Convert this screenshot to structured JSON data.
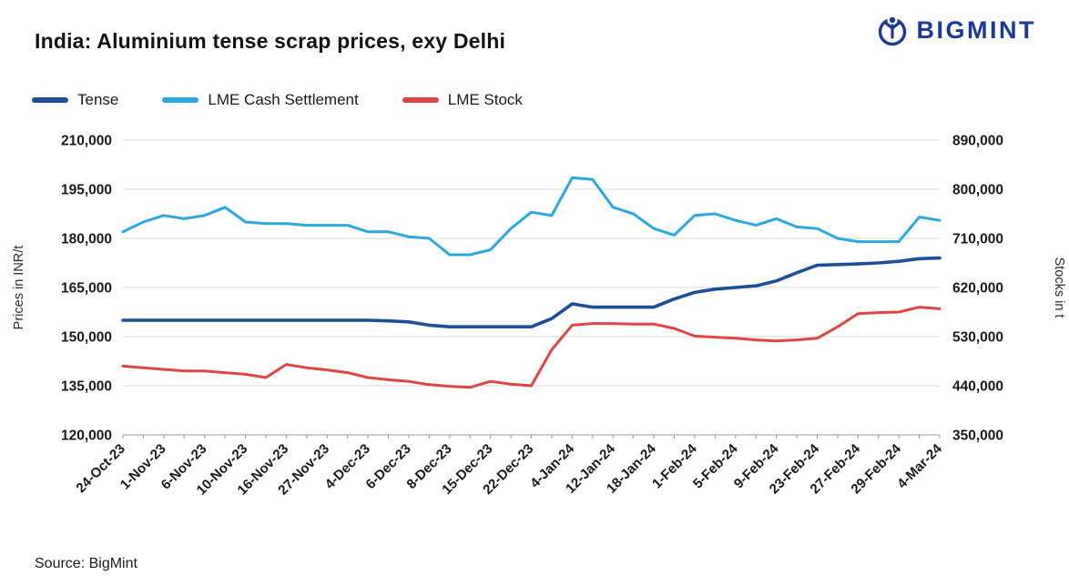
{
  "header": {
    "title": "India: Aluminium tense scrap prices, exy Delhi",
    "brand": "BIGMINT",
    "brand_color": "#1c3998"
  },
  "legend": [
    {
      "label": "Tense",
      "color": "#1b4f9c"
    },
    {
      "label": "LME Cash Settlement",
      "color": "#2aa9e0"
    },
    {
      "label": "LME Stock",
      "color": "#e24444"
    }
  ],
  "source": "Source: BigMint",
  "chart_data": {
    "type": "line",
    "title": "India: Aluminium tense scrap prices, exy Delhi",
    "grid": true,
    "legend_position": "top",
    "x_tick_labels": [
      "24-Oct-23",
      "1-Nov-23",
      "6-Nov-23",
      "10-Nov-23",
      "16-Nov-23",
      "27-Nov-23",
      "4-Dec-23",
      "6-Dec-23",
      "8-Dec-23",
      "15-Dec-23",
      "22-Dec-23",
      "4-Jan-24",
      "12-Jan-24",
      "18-Jan-24",
      "1-Feb-24",
      "5-Feb-24",
      "9-Feb-24",
      "23-Feb-24",
      "27-Feb-24",
      "29-Feb-24",
      "4-Mar-24"
    ],
    "left_axis": {
      "label": "Prices in INR/t",
      "min": 120000,
      "max": 210000,
      "ticks": [
        120000,
        135000,
        150000,
        165000,
        180000,
        195000,
        210000
      ]
    },
    "right_axis": {
      "label": "Stocks in t",
      "min": 350000,
      "max": 890000,
      "ticks": [
        350000,
        440000,
        530000,
        620000,
        710000,
        800000,
        890000
      ]
    },
    "series": [
      {
        "name": "Tense",
        "axis": "left",
        "color": "#1b4f9c",
        "width": 3.6,
        "values": [
          155000,
          155000,
          155000,
          155000,
          155000,
          155000,
          155000,
          155000,
          155000,
          155000,
          155000,
          155000,
          155000,
          154800,
          154500,
          153500,
          153000,
          153000,
          153000,
          153000,
          153000,
          155500,
          160000,
          159000,
          159000,
          159000,
          159000,
          161500,
          163500,
          164500,
          165000,
          165500,
          167000,
          169500,
          171800,
          172000,
          172200,
          172500,
          173000,
          173800,
          174000
        ]
      },
      {
        "name": "LME Cash Settlement",
        "axis": "left",
        "color": "#2aa9e0",
        "width": 3,
        "values": [
          182000,
          185000,
          187000,
          186000,
          187000,
          189500,
          185000,
          184500,
          184500,
          184000,
          184000,
          184000,
          182000,
          182000,
          180500,
          180000,
          175000,
          175000,
          176500,
          183000,
          188000,
          187000,
          198500,
          198000,
          189500,
          187500,
          183000,
          181000,
          187000,
          187500,
          185500,
          184000,
          186000,
          183500,
          183000,
          180000,
          179000,
          179000,
          179000,
          186500,
          185500
        ]
      },
      {
        "name": "LME Stock",
        "axis": "right",
        "color": "#e24444",
        "width": 3,
        "values": [
          476000,
          473000,
          470000,
          467000,
          467000,
          464000,
          461000,
          455000,
          479000,
          473000,
          469000,
          464000,
          455000,
          451000,
          448000,
          442000,
          439000,
          437000,
          448000,
          443000,
          440000,
          506000,
          551000,
          554000,
          554000,
          553000,
          553000,
          545000,
          531000,
          529000,
          527000,
          524000,
          522000,
          524000,
          527000,
          548000,
          572000,
          574000,
          575000,
          584000,
          581000
        ]
      }
    ]
  }
}
